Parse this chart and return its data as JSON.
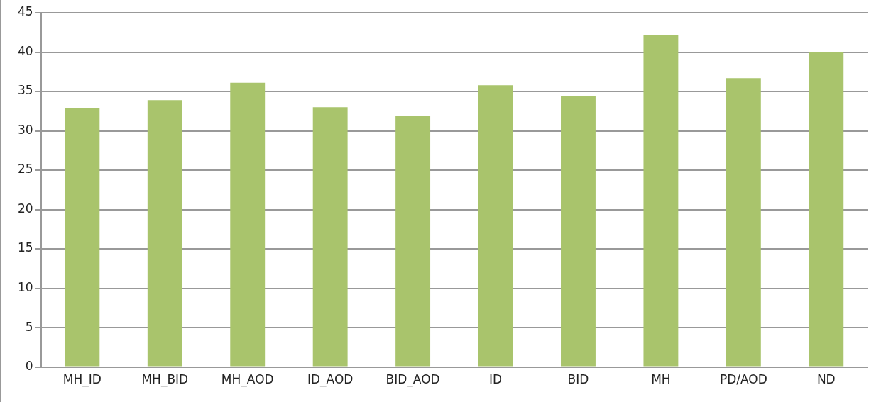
{
  "chart_data": {
    "type": "bar",
    "categories": [
      "MH_ID",
      "MH_BID",
      "MH_AOD",
      "ID_AOD",
      "BID_AOD",
      "ID",
      "BID",
      "MH",
      "PD/AOD",
      "ND"
    ],
    "values": [
      32.9,
      33.9,
      36.1,
      33.0,
      31.9,
      35.8,
      34.4,
      42.2,
      36.7,
      40.0
    ],
    "color": "#a9c46c",
    "ylim": [
      0,
      45
    ],
    "yticks": [
      0,
      5,
      10,
      15,
      20,
      25,
      30,
      35,
      40,
      45
    ],
    "grid": "y"
  }
}
